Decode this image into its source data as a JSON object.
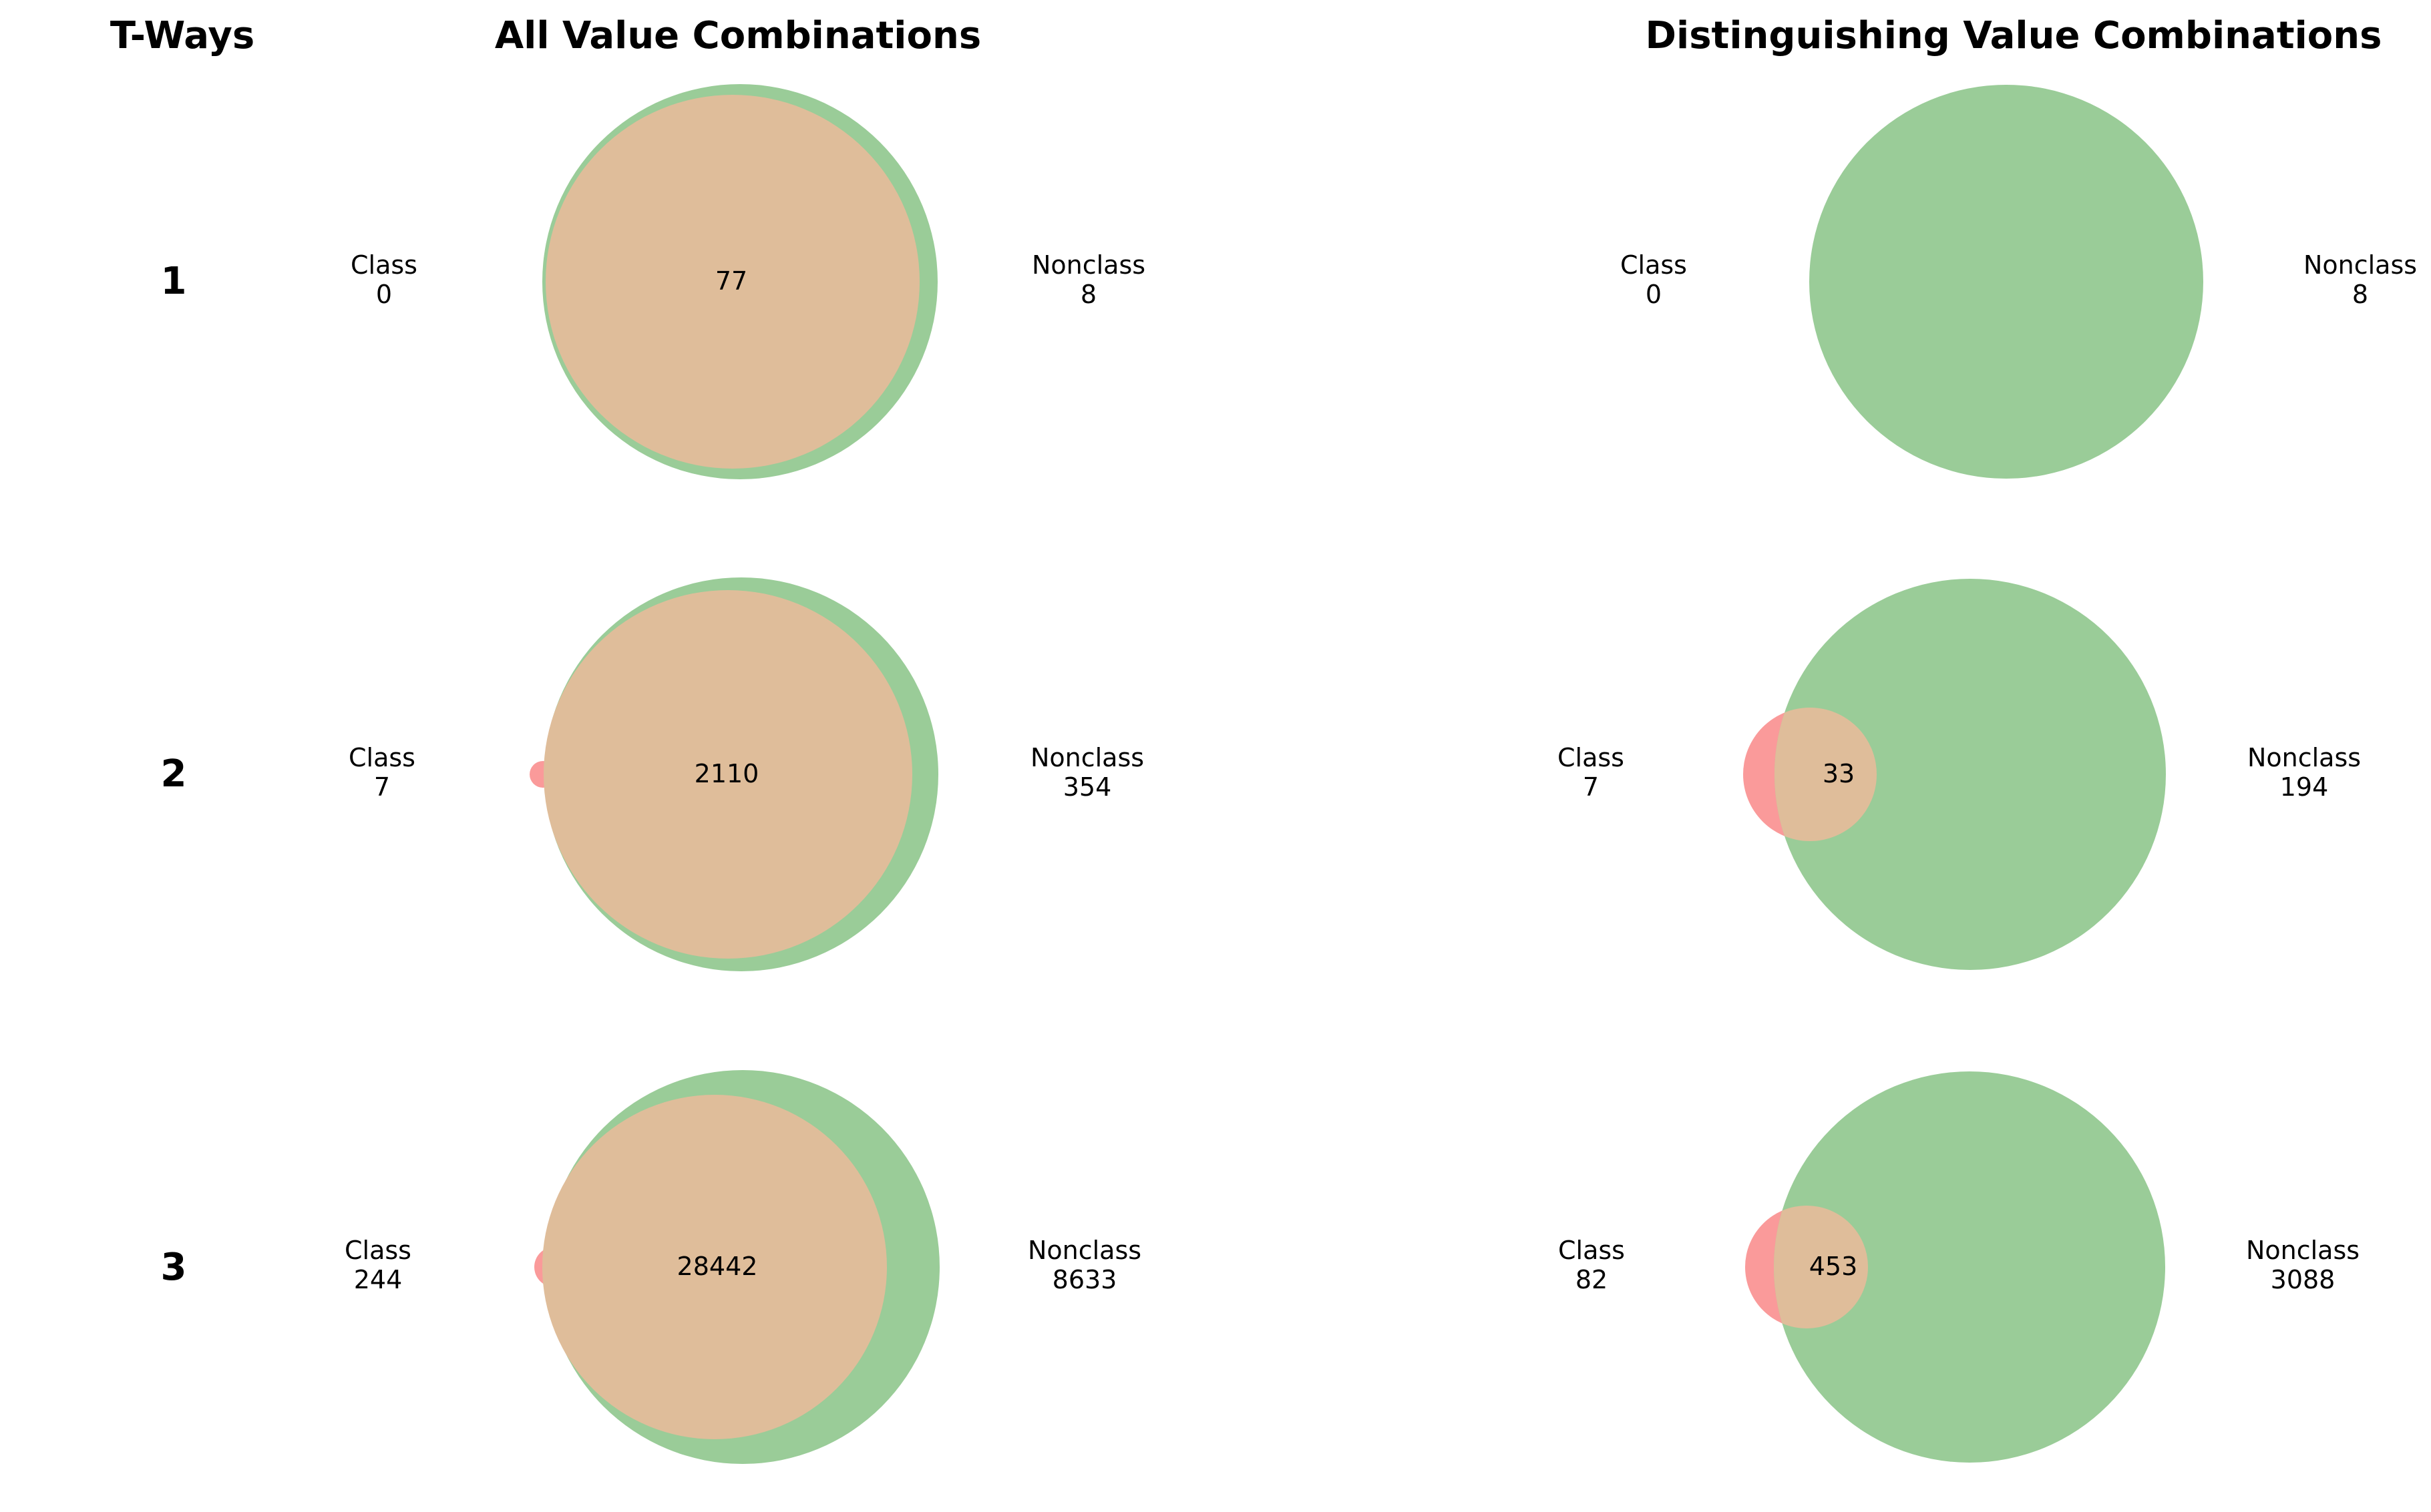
{
  "headers": {
    "t_ways": "T-Ways",
    "all": "All Value Combinations",
    "distinguishing": "Distinguishing Value Combinations"
  },
  "colors": {
    "class_only": "#fa9a9a",
    "nonclass_only": "#9acc98",
    "overlap": "#dfbd9a"
  },
  "set_labels": {
    "class": "Class",
    "nonclass": "Nonclass"
  },
  "rows": [
    {
      "t": "1",
      "all": {
        "class_only": "0",
        "overlap": "77",
        "nonclass_only": "8"
      },
      "distinguishing": {
        "class_only": "0",
        "overlap": "",
        "nonclass_only": "8"
      }
    },
    {
      "t": "2",
      "all": {
        "class_only": "7",
        "overlap": "2110",
        "nonclass_only": "354"
      },
      "distinguishing": {
        "class_only": "7",
        "overlap": "33",
        "nonclass_only": "194"
      }
    },
    {
      "t": "3",
      "all": {
        "class_only": "244",
        "overlap": "28442",
        "nonclass_only": "8633"
      },
      "distinguishing": {
        "class_only": "82",
        "overlap": "453",
        "nonclass_only": "3088"
      }
    }
  ]
}
